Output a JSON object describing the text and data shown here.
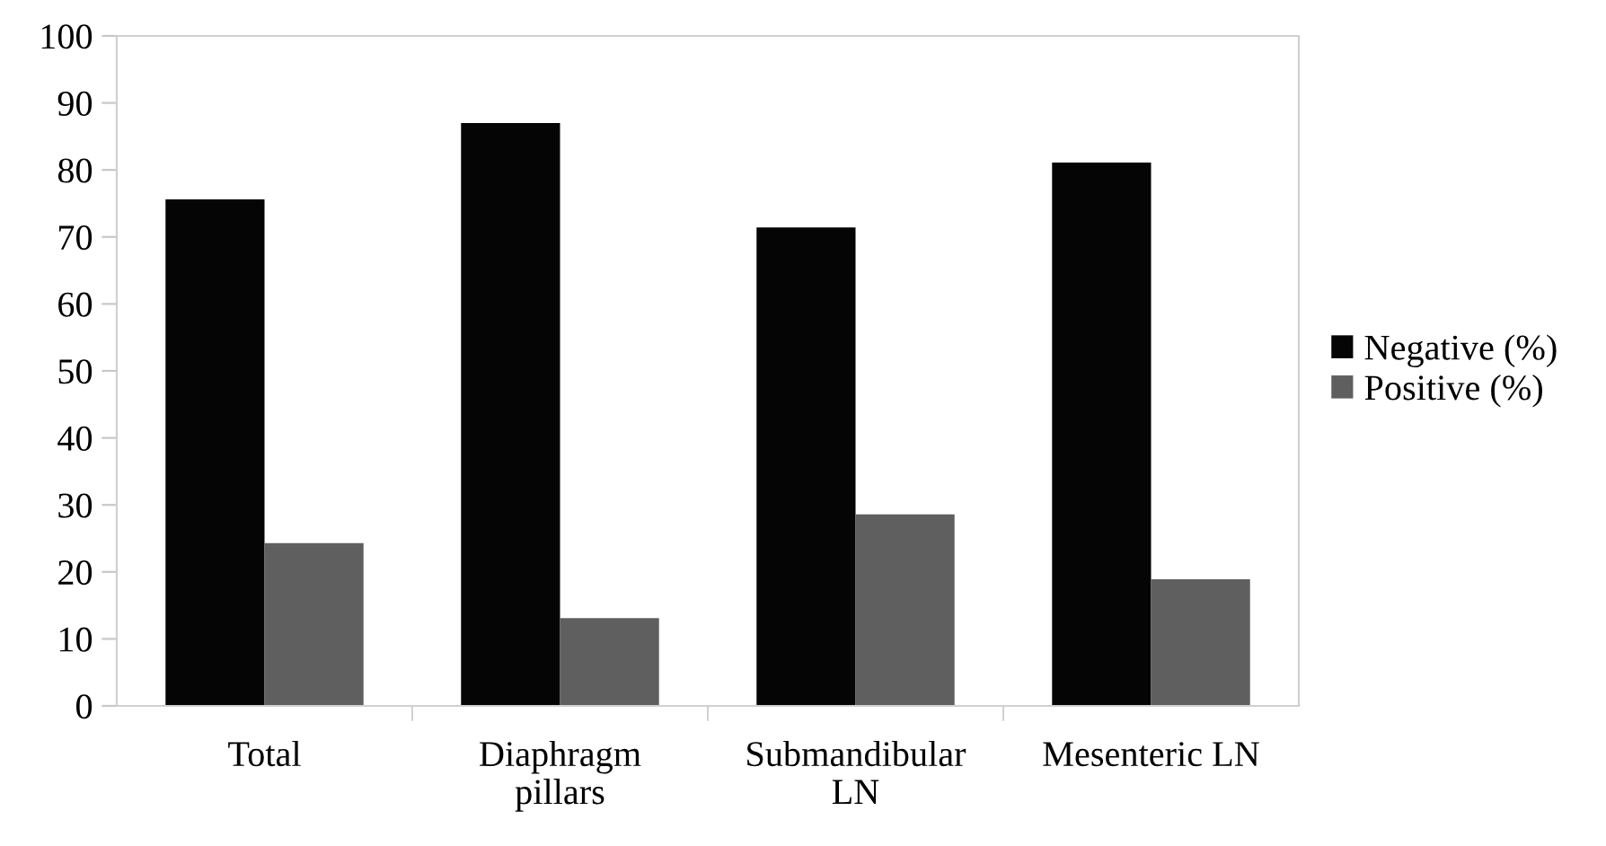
{
  "chart_data": {
    "type": "bar",
    "categories": [
      "Total",
      "Diaphragm\npillars",
      "Submandibular\nLN",
      "Mesenteric LN"
    ],
    "series": [
      {
        "name": "Negative (%)",
        "color": "#050505",
        "values": [
          75.6,
          87.0,
          71.4,
          81.1
        ]
      },
      {
        "name": "Positive (%)",
        "color": "#5f5f5f",
        "values": [
          24.3,
          13.1,
          28.6,
          18.9
        ]
      }
    ],
    "ylim": [
      0,
      100
    ],
    "yticks": [
      0,
      10,
      20,
      30,
      40,
      50,
      60,
      70,
      80,
      90,
      100
    ],
    "grid": false,
    "legend": "right"
  }
}
